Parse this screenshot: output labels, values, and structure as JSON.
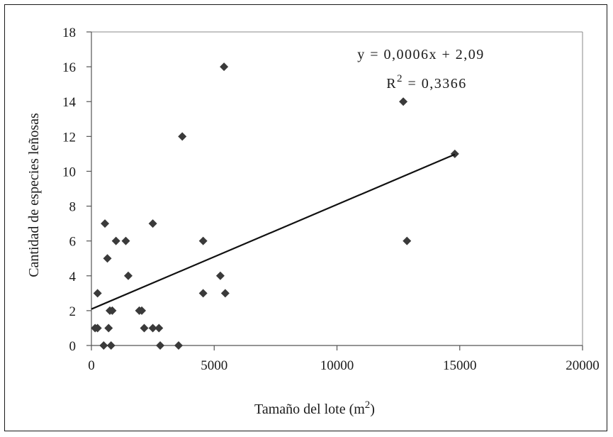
{
  "chart_data": {
    "type": "scatter",
    "title": "",
    "xlabel": "Tamaño del lote (m",
    "xlabel_sup": "2",
    "xlabel_tail": ")",
    "ylabel": "Cantidad de especies leñosas",
    "xlim": [
      0,
      20000
    ],
    "ylim": [
      0,
      18
    ],
    "x_ticks": [
      0,
      5000,
      10000,
      15000,
      20000
    ],
    "y_ticks": [
      0,
      2,
      4,
      6,
      8,
      10,
      12,
      14,
      16,
      18
    ],
    "grid": false,
    "legend": "none",
    "marker": "diamond",
    "colors": {
      "marker": "#3a3a3a",
      "trendline": "#111111",
      "axis": "#888888",
      "frame": "#1a1a1a"
    },
    "points": [
      {
        "x": 150,
        "y": 1
      },
      {
        "x": 250,
        "y": 1
      },
      {
        "x": 250,
        "y": 3
      },
      {
        "x": 550,
        "y": 7
      },
      {
        "x": 500,
        "y": 0
      },
      {
        "x": 650,
        "y": 5
      },
      {
        "x": 700,
        "y": 1
      },
      {
        "x": 750,
        "y": 2
      },
      {
        "x": 800,
        "y": 0
      },
      {
        "x": 850,
        "y": 2
      },
      {
        "x": 1000,
        "y": 6
      },
      {
        "x": 1400,
        "y": 6
      },
      {
        "x": 1500,
        "y": 4
      },
      {
        "x": 1950,
        "y": 2
      },
      {
        "x": 2050,
        "y": 2
      },
      {
        "x": 2150,
        "y": 1
      },
      {
        "x": 2500,
        "y": 1
      },
      {
        "x": 2500,
        "y": 7
      },
      {
        "x": 2750,
        "y": 1
      },
      {
        "x": 2800,
        "y": 0
      },
      {
        "x": 3550,
        "y": 0
      },
      {
        "x": 3700,
        "y": 12
      },
      {
        "x": 4550,
        "y": 3
      },
      {
        "x": 4550,
        "y": 6
      },
      {
        "x": 5250,
        "y": 4
      },
      {
        "x": 5400,
        "y": 16
      },
      {
        "x": 5450,
        "y": 3
      },
      {
        "x": 12700,
        "y": 14
      },
      {
        "x": 12850,
        "y": 6
      },
      {
        "x": 14800,
        "y": 11
      }
    ],
    "trendline": {
      "slope": 0.0006,
      "intercept": 2.09,
      "x_range": [
        0,
        14800
      ]
    },
    "annotations": {
      "equation": "y = 0,0006x + 2,09",
      "r2_prefix": "R",
      "r2_sup": "2",
      "r2_value": " = 0,3366"
    }
  }
}
